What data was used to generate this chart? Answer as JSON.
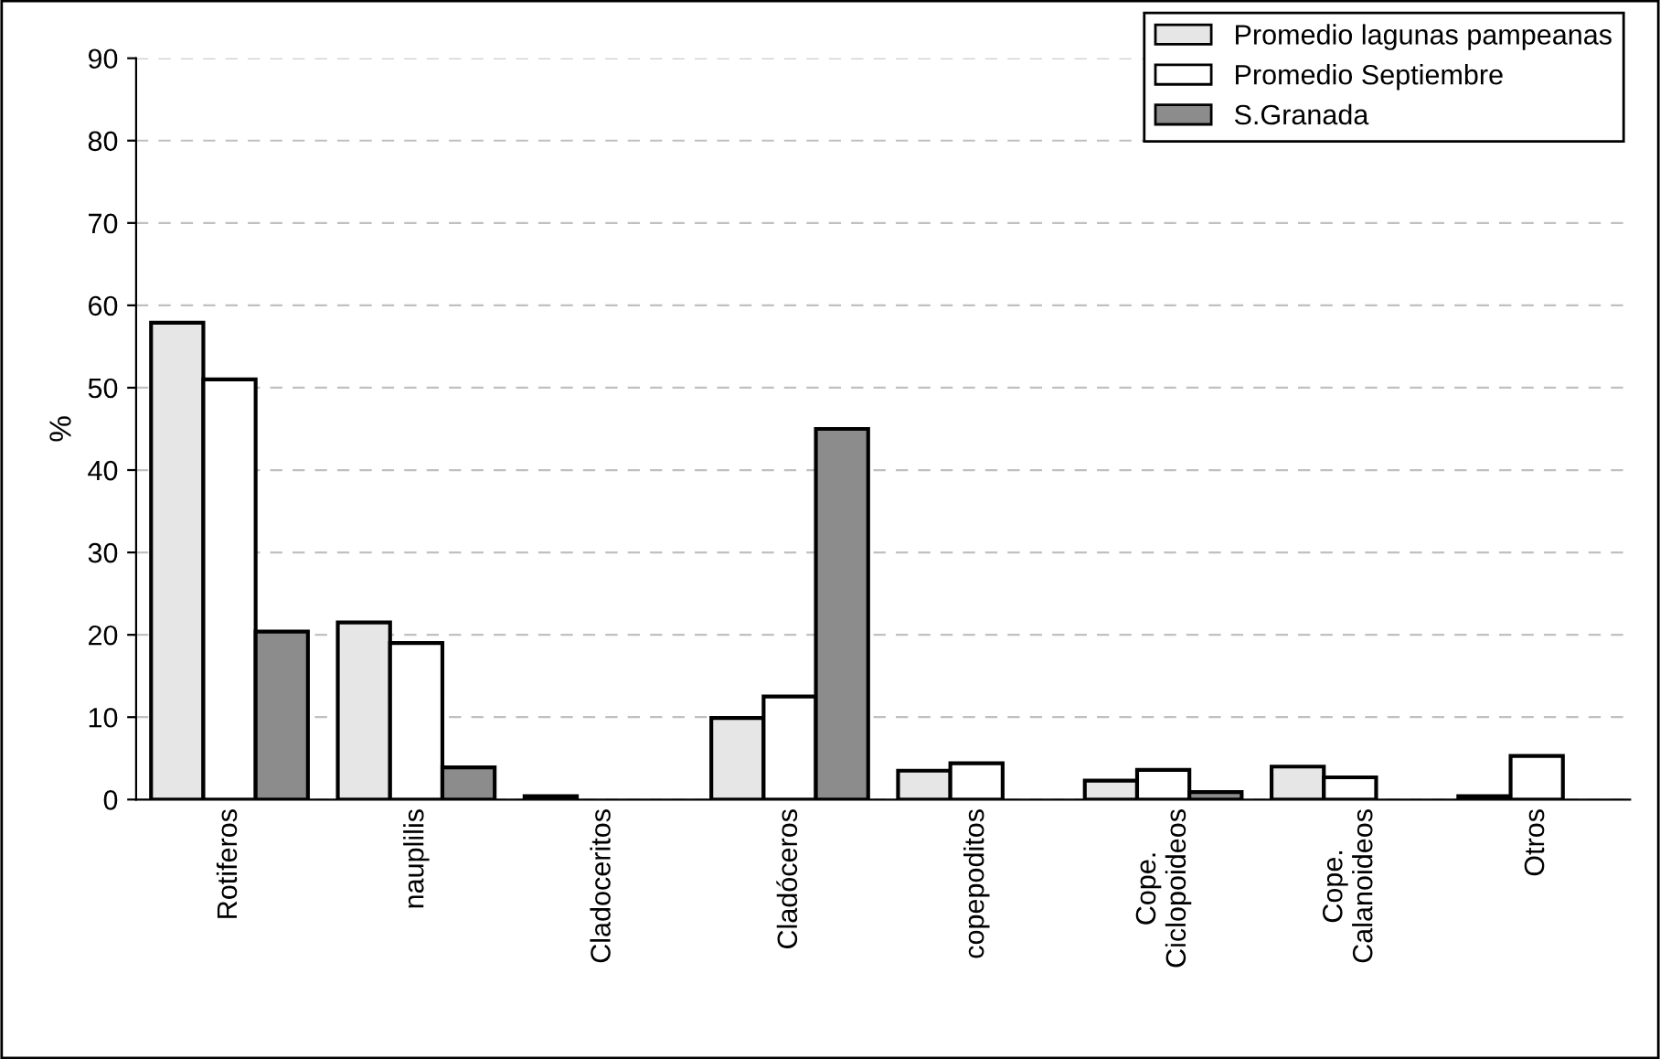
{
  "chart_data": {
    "type": "bar",
    "ylabel": "%",
    "categories": [
      "Rotiferos",
      "nauplilis",
      "Cladoceritos",
      "Cladóceros",
      "copepoditos",
      "Cope.\nCiclopoideos",
      "Cope.\nCalanoideos",
      "Otros"
    ],
    "series": [
      {
        "name": "Promedio lagunas pampeanas",
        "color": "#e6e6e6",
        "values": [
          57.9,
          21.5,
          0.4,
          9.9,
          3.5,
          2.3,
          4.0,
          0.4
        ]
      },
      {
        "name": "Promedio Septiembre",
        "color": "#ffffff",
        "values": [
          51.0,
          19.0,
          null,
          12.5,
          4.4,
          3.6,
          2.7,
          5.3
        ]
      },
      {
        "name": "S.Granada",
        "color": "#8c8c8c",
        "values": [
          20.4,
          3.9,
          null,
          45.0,
          null,
          0.9,
          null,
          null
        ]
      }
    ],
    "ylim": [
      0,
      90
    ],
    "yticks": [
      0,
      10,
      20,
      30,
      40,
      50,
      60,
      70,
      80,
      90
    ],
    "grid": "y",
    "legend": "top right"
  }
}
